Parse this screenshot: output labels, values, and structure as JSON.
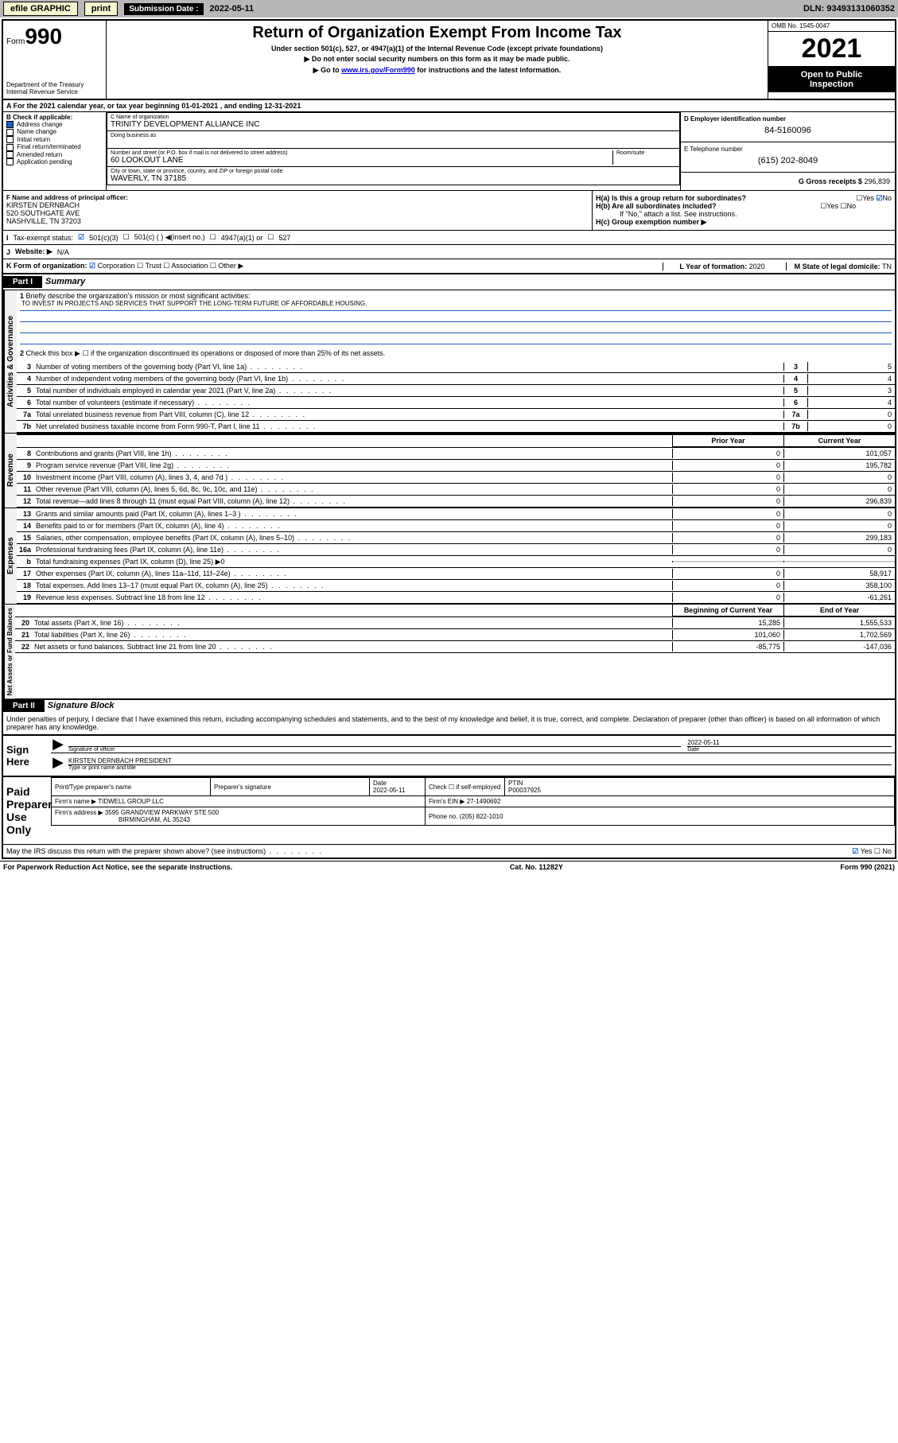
{
  "topbar": {
    "efile": "efile GRAPHIC",
    "print": "print",
    "sub_label": "Submission Date :",
    "sub_date": "2022-05-11",
    "dln": "DLN: 93493131060352"
  },
  "header": {
    "form_word": "Form",
    "form_num": "990",
    "title": "Return of Organization Exempt From Income Tax",
    "sub1": "Under section 501(c), 527, or 4947(a)(1) of the Internal Revenue Code (except private foundations)",
    "sub2": "▶ Do not enter social security numbers on this form as it may be made public.",
    "sub3_pre": "▶ Go to ",
    "sub3_link": "www.irs.gov/Form990",
    "sub3_post": " for instructions and the latest information.",
    "dept": "Department of the Treasury",
    "irs": "Internal Revenue Service",
    "omb": "OMB No. 1545-0047",
    "year": "2021",
    "inspect1": "Open to Public",
    "inspect2": "Inspection"
  },
  "section_a": {
    "text": "A For the 2021 calendar year, or tax year beginning 01-01-2021   , and ending 12-31-2021"
  },
  "section_b": {
    "label": "B Check if applicable:",
    "items": [
      "Address change",
      "Name change",
      "Initial return",
      "Final return/terminated",
      "Amended return",
      "Application pending"
    ],
    "checked": [
      true,
      false,
      false,
      false,
      false,
      false
    ]
  },
  "section_c": {
    "name_label": "C Name of organization",
    "name": "TRINITY DEVELOPMENT ALLIANCE INC",
    "dba_label": "Doing business as",
    "addr_label": "Number and street (or P.O. box if mail is not delivered to street address)",
    "room_label": "Room/suite",
    "addr": "60 LOOKOUT LANE",
    "city_label": "City or town, state or province, country, and ZIP or foreign postal code",
    "city": "WAVERLY, TN  37185"
  },
  "section_d": {
    "label": "D Employer identification number",
    "val": "84-5160096"
  },
  "section_e": {
    "label": "E Telephone number",
    "val": "(615) 202-8049"
  },
  "section_g": {
    "label": "G Gross receipts $",
    "val": "296,839"
  },
  "section_f": {
    "label": "F Name and address of principal officer:",
    "line1": "KIRSTEN DERNBACH",
    "line2": "520 SOUTHGATE AVE",
    "line3": "NASHVILLE, TN  37203"
  },
  "section_h": {
    "a_label": "H(a)  Is this a group return for subordinates?",
    "a_yes": "Yes",
    "a_no": "No",
    "b_label": "H(b)  Are all subordinates included?",
    "b_note": "If \"No,\" attach a list. See instructions.",
    "c_label": "H(c)  Group exemption number ▶"
  },
  "section_i": {
    "label": "Tax-exempt status:",
    "opts": [
      "501(c)(3)",
      "501(c) (  ) ◀(insert no.)",
      "4947(a)(1) or",
      "527"
    ]
  },
  "section_j": {
    "label": "Website: ▶",
    "val": "N/A"
  },
  "section_k": {
    "label": "K Form of organization:",
    "opts": [
      "Corporation",
      "Trust",
      "Association",
      "Other ▶"
    ]
  },
  "section_l": {
    "label": "L Year of formation:",
    "val": "2020"
  },
  "section_m": {
    "label": "M State of legal domicile:",
    "val": "TN"
  },
  "part1": {
    "header": "Part I",
    "title": "Summary",
    "q1": "Briefly describe the organization's mission or most significant activities:",
    "mission": "TO INVEST IN PROJECTS AND SERVICES THAT SUPPORT THE LONG-TERM FUTURE OF AFFORDABLE HOUSING.",
    "q2": "Check this box ▶ ☐  if the organization discontinued its operations or disposed of more than 25% of its net assets.",
    "tab_ag": "Activities & Governance",
    "tab_rev": "Revenue",
    "tab_exp": "Expenses",
    "tab_net": "Net Assets or Fund Balances",
    "lines_ag": [
      {
        "n": "3",
        "t": "Number of voting members of the governing body (Part VI, line 1a)",
        "v": "5"
      },
      {
        "n": "4",
        "t": "Number of independent voting members of the governing body (Part VI, line 1b)",
        "v": "4"
      },
      {
        "n": "5",
        "t": "Total number of individuals employed in calendar year 2021 (Part V, line 2a)",
        "v": "3"
      },
      {
        "n": "6",
        "t": "Total number of volunteers (estimate if necessary)",
        "v": "4"
      },
      {
        "n": "7a",
        "t": "Total unrelated business revenue from Part VIII, column (C), line 12",
        "v": "0"
      },
      {
        "n": "7b",
        "t": "Net unrelated business taxable income from Form 990-T, Part I, line 11",
        "v": "0"
      }
    ],
    "col_prior": "Prior Year",
    "col_curr": "Current Year",
    "lines_rev": [
      {
        "n": "8",
        "t": "Contributions and grants (Part VIII, line 1h)",
        "p": "0",
        "c": "101,057"
      },
      {
        "n": "9",
        "t": "Program service revenue (Part VIII, line 2g)",
        "p": "0",
        "c": "195,782"
      },
      {
        "n": "10",
        "t": "Investment income (Part VIII, column (A), lines 3, 4, and 7d )",
        "p": "0",
        "c": "0"
      },
      {
        "n": "11",
        "t": "Other revenue (Part VIII, column (A), lines 5, 6d, 8c, 9c, 10c, and 11e)",
        "p": "0",
        "c": "0"
      },
      {
        "n": "12",
        "t": "Total revenue—add lines 8 through 11 (must equal Part VIII, column (A), line 12)",
        "p": "0",
        "c": "296,839"
      }
    ],
    "lines_exp": [
      {
        "n": "13",
        "t": "Grants and similar amounts paid (Part IX, column (A), lines 1–3 )",
        "p": "0",
        "c": "0"
      },
      {
        "n": "14",
        "t": "Benefits paid to or for members (Part IX, column (A), line 4)",
        "p": "0",
        "c": "0"
      },
      {
        "n": "15",
        "t": "Salaries, other compensation, employee benefits (Part IX, column (A), lines 5–10)",
        "p": "0",
        "c": "299,183"
      },
      {
        "n": "16a",
        "t": "Professional fundraising fees (Part IX, column (A), line 11e)",
        "p": "0",
        "c": "0"
      },
      {
        "n": "b",
        "t": "Total fundraising expenses (Part IX, column (D), line 25) ▶0",
        "p": "",
        "c": "",
        "shaded": true
      },
      {
        "n": "17",
        "t": "Other expenses (Part IX, column (A), lines 11a–11d, 11f–24e)",
        "p": "0",
        "c": "58,917"
      },
      {
        "n": "18",
        "t": "Total expenses. Add lines 13–17 (must equal Part IX, column (A), line 25)",
        "p": "0",
        "c": "358,100"
      },
      {
        "n": "19",
        "t": "Revenue less expenses. Subtract line 18 from line 12",
        "p": "0",
        "c": "-61,261"
      }
    ],
    "col_begin": "Beginning of Current Year",
    "col_end": "End of Year",
    "lines_net": [
      {
        "n": "20",
        "t": "Total assets (Part X, line 16)",
        "p": "15,285",
        "c": "1,555,533"
      },
      {
        "n": "21",
        "t": "Total liabilities (Part X, line 26)",
        "p": "101,060",
        "c": "1,702,569"
      },
      {
        "n": "22",
        "t": "Net assets or fund balances. Subtract line 21 from line 20",
        "p": "-85,775",
        "c": "-147,036"
      }
    ]
  },
  "part2": {
    "header": "Part II",
    "title": "Signature Block",
    "perjury": "Under penalties of perjury, I declare that I have examined this return, including accompanying schedules and statements, and to the best of my knowledge and belief, it is true, correct, and complete. Declaration of preparer (other than officer) is based on all information of which preparer has any knowledge.",
    "sign_here": "Sign Here",
    "sig_officer": "Signature of officer",
    "sig_date": "Date",
    "sig_date_val": "2022-05-11",
    "sig_name": "KIRSTEN DERNBACH PRESIDENT",
    "sig_name_label": "Type or print name and title",
    "paid": "Paid Preparer Use Only",
    "prep_name_label": "Print/Type preparer's name",
    "prep_sig_label": "Preparer's signature",
    "prep_date_label": "Date",
    "prep_date": "2022-05-11",
    "prep_check": "Check ☐ if self-employed",
    "ptin_label": "PTIN",
    "ptin": "P00037925",
    "firm_name_label": "Firm's name    ▶",
    "firm_name": "TIDWELL GROUP LLC",
    "firm_ein_label": "Firm's EIN ▶",
    "firm_ein": "27-1490692",
    "firm_addr_label": "Firm's address ▶",
    "firm_addr1": "3595 GRANDVIEW PARKWAY STE 500",
    "firm_addr2": "BIRMINGHAM, AL  35243",
    "firm_phone_label": "Phone no.",
    "firm_phone": "(205) 822-1010",
    "discuss": "May the IRS discuss this return with the preparer shown above? (see instructions)",
    "yes": "Yes",
    "no": "No"
  },
  "footer": {
    "pra": "For Paperwork Reduction Act Notice, see the separate instructions.",
    "cat": "Cat. No. 11282Y",
    "form": "Form 990 (2021)"
  }
}
